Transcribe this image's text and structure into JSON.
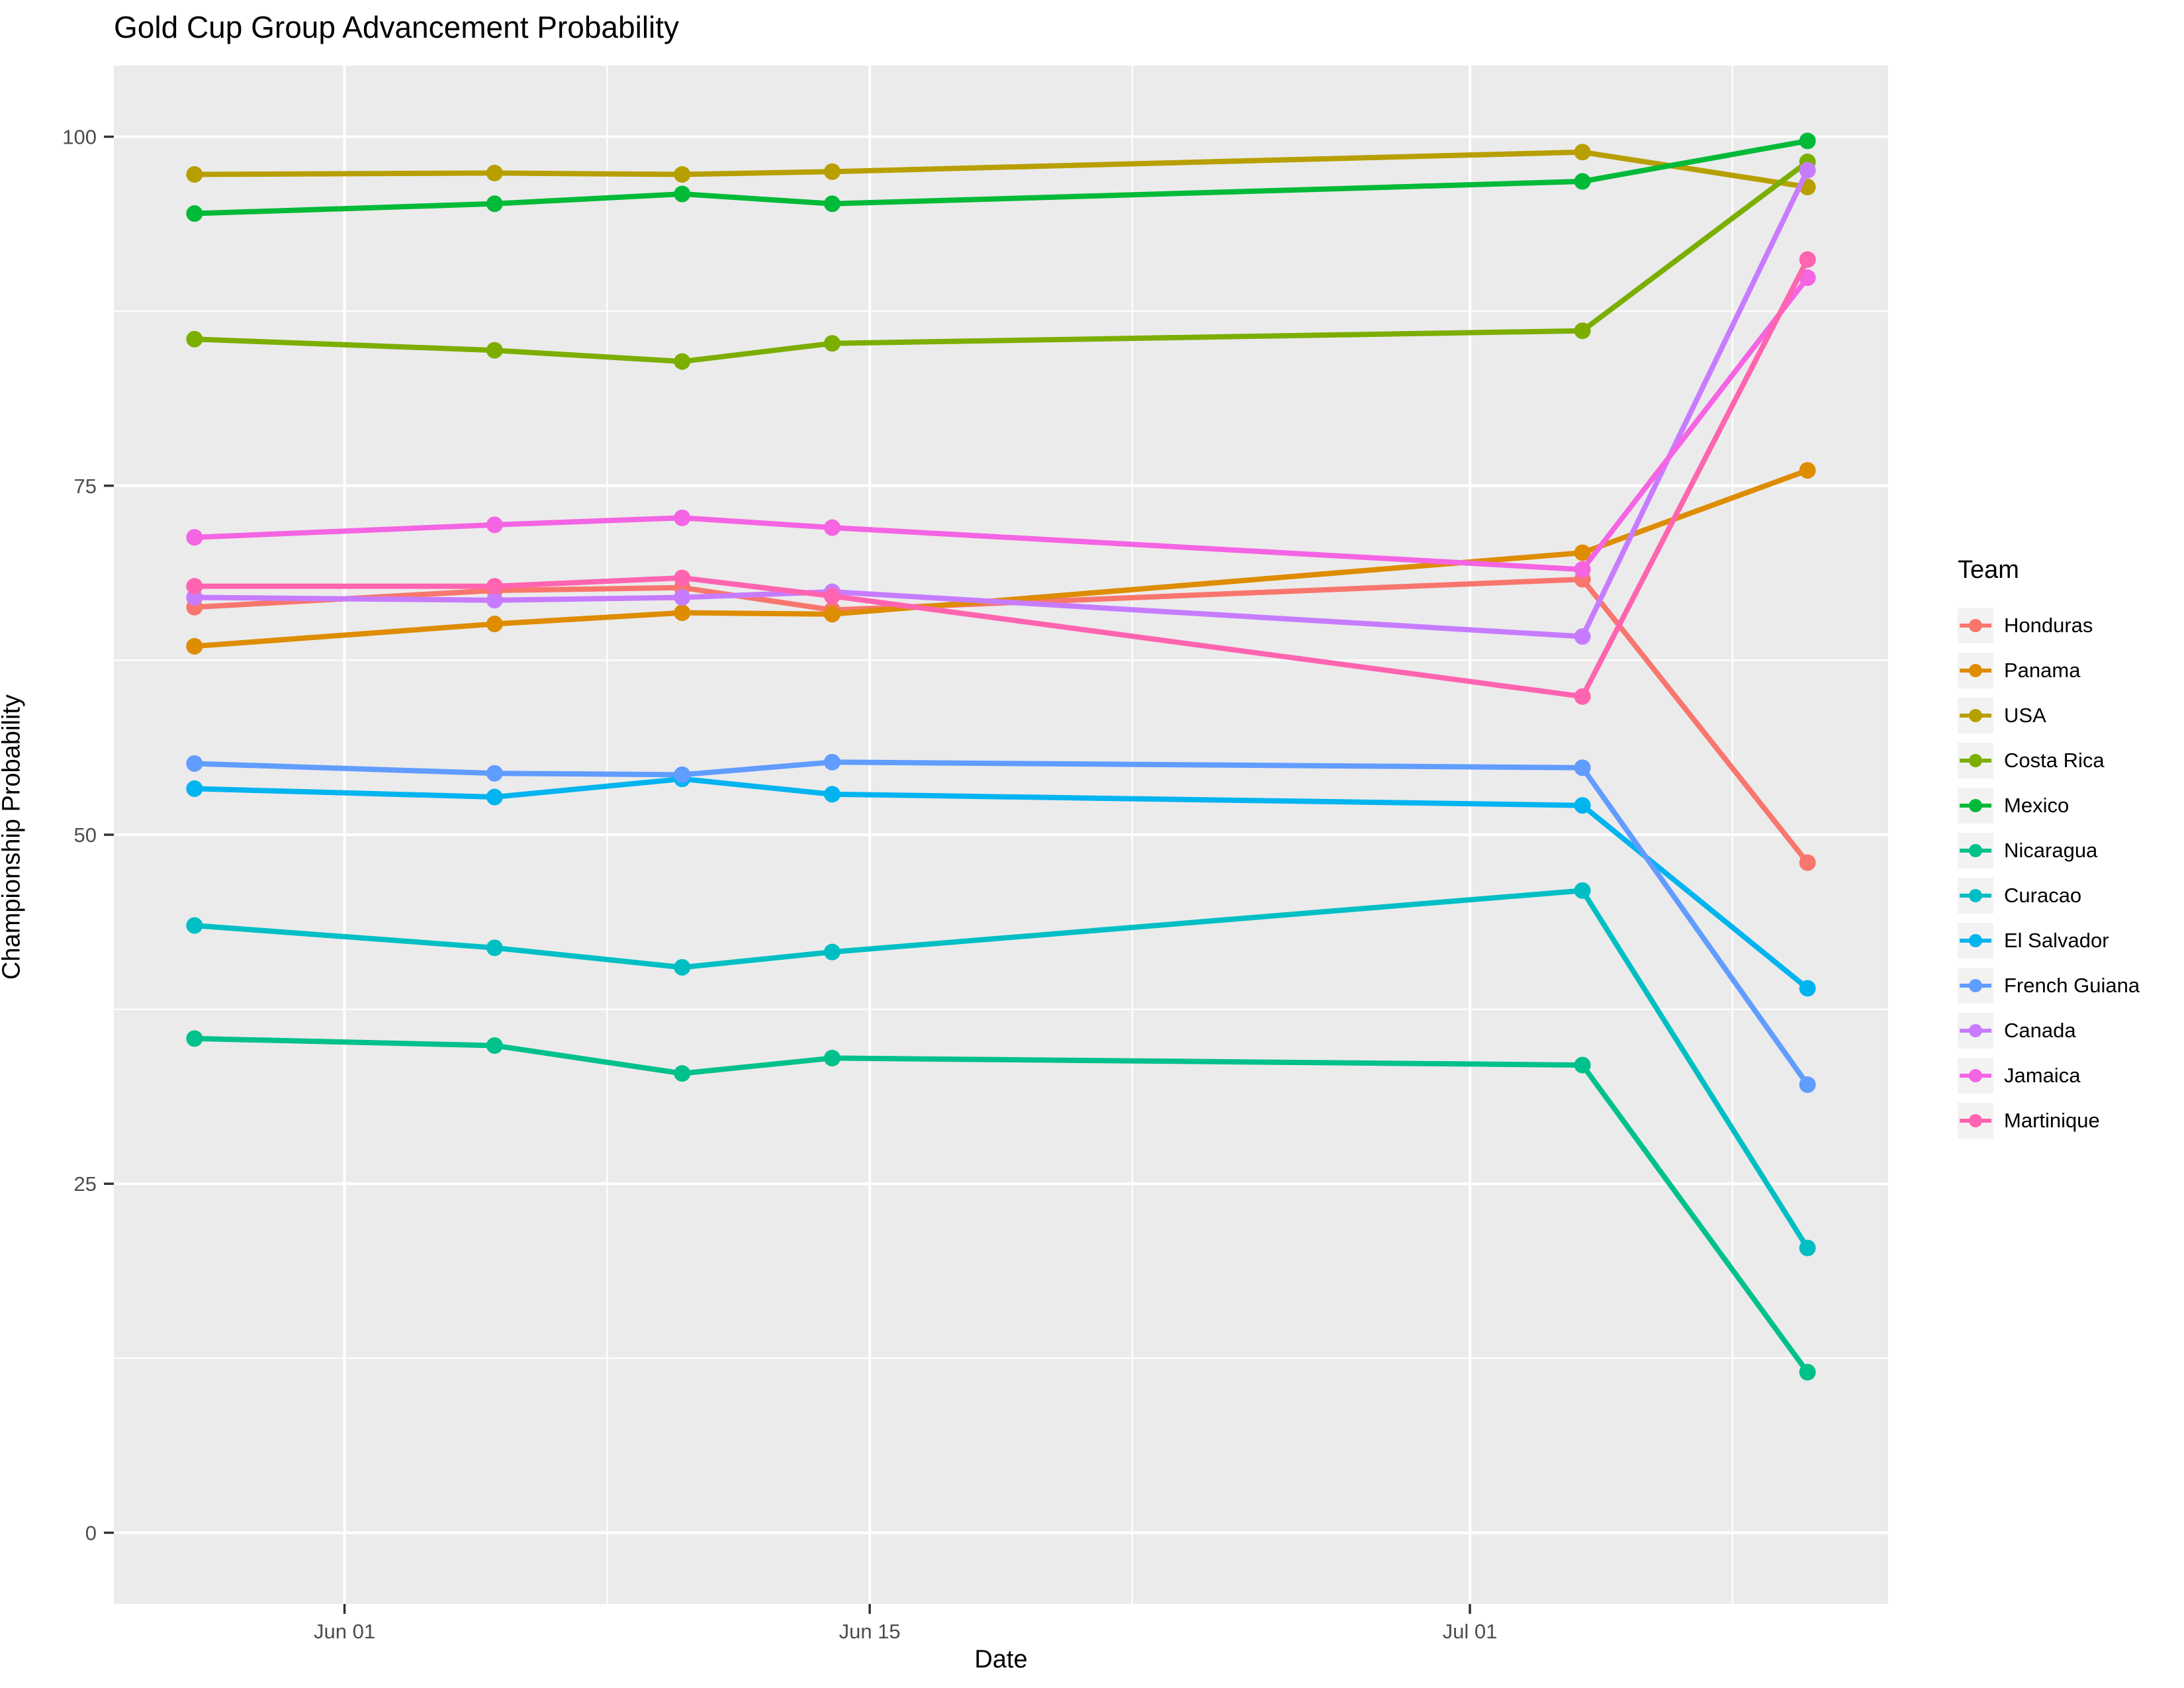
{
  "chart_data": {
    "type": "line",
    "title": "Gold Cup Group Advancement Probability",
    "xlabel": "Date",
    "ylabel": "Championship Probability",
    "legend_title": "Team",
    "legend_position": "right",
    "grid": "on",
    "panel_background": "#EBEBEB",
    "gridline_color": "#FFFFFF",
    "tick_label_color": "#4D4D4D",
    "tick_mark_color": "#333333",
    "x": {
      "unit": "days_since_jun01",
      "point_offsets": [
        -4,
        4,
        9,
        13,
        33,
        39
      ],
      "point_dates": [
        "May 28",
        "Jun 05",
        "Jun 10",
        "Jun 14",
        "Jul 04",
        "Jul 10"
      ],
      "major_ticks": [
        {
          "offset": 0,
          "label": "Jun 01"
        },
        {
          "offset": 14,
          "label": "Jun 15"
        },
        {
          "offset": 30,
          "label": "Jul 01"
        }
      ],
      "minor_ticks": [
        7,
        21,
        37
      ],
      "domain": [
        -6.15,
        41.15
      ]
    },
    "y": {
      "major_ticks": [
        0,
        25,
        50,
        75,
        100
      ],
      "minor_ticks": [
        12.5,
        37.5,
        62.5,
        87.5
      ],
      "domain": [
        -5.1,
        105.1
      ]
    },
    "series": [
      {
        "name": "Honduras",
        "color": "#F8766D",
        "values": [
          66.3,
          67.5,
          67.7,
          66.1,
          68.3,
          48.0
        ]
      },
      {
        "name": "Panama",
        "color": "#DE8C00",
        "values": [
          63.5,
          65.1,
          65.9,
          65.8,
          70.2,
          76.1
        ]
      },
      {
        "name": "USA",
        "color": "#B79F00",
        "values": [
          97.3,
          97.4,
          97.3,
          97.5,
          98.9,
          96.4
        ]
      },
      {
        "name": "Costa Rica",
        "color": "#7CAE00",
        "values": [
          85.5,
          84.7,
          83.9,
          85.2,
          86.1,
          98.2
        ]
      },
      {
        "name": "Mexico",
        "color": "#00BA38",
        "values": [
          94.5,
          95.2,
          95.9,
          95.2,
          96.8,
          99.7
        ]
      },
      {
        "name": "Nicaragua",
        "color": "#00C08B",
        "values": [
          35.4,
          34.9,
          32.9,
          34.0,
          33.5,
          11.5
        ]
      },
      {
        "name": "Curacao",
        "color": "#00BFC4",
        "values": [
          43.5,
          41.9,
          40.5,
          41.6,
          46.0,
          20.4
        ]
      },
      {
        "name": "El Salvador",
        "color": "#00B4F0",
        "values": [
          53.3,
          52.7,
          54.0,
          52.9,
          52.1,
          39.0
        ]
      },
      {
        "name": "French Guiana",
        "color": "#619CFF",
        "values": [
          55.1,
          54.4,
          54.3,
          55.2,
          54.8,
          32.1
        ]
      },
      {
        "name": "Canada",
        "color": "#C77CFF",
        "values": [
          67.0,
          66.8,
          67.0,
          67.4,
          64.2,
          97.6
        ]
      },
      {
        "name": "Jamaica",
        "color": "#F564E3",
        "values": [
          71.3,
          72.2,
          72.7,
          72.0,
          69.0,
          89.9
        ]
      },
      {
        "name": "Martinique",
        "color": "#FF64B0",
        "values": [
          67.8,
          67.8,
          68.4,
          67.1,
          59.9,
          91.2
        ]
      }
    ]
  }
}
